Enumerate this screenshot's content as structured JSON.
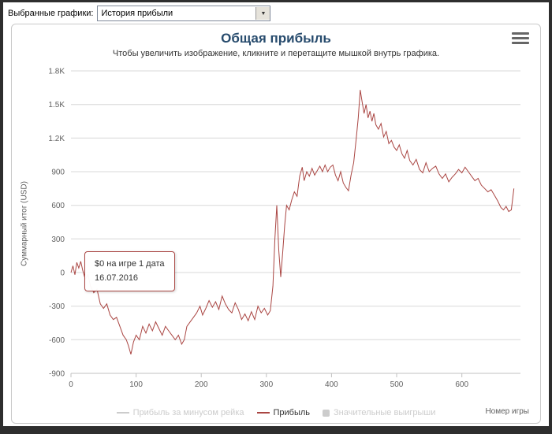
{
  "toolbar": {
    "label": "Выбранные графики:",
    "dropdown_value": "История прибыли"
  },
  "chart": {
    "title": "Общая прибыль",
    "subtitle": "Чтобы увеличить изображение, кликните и перетащите мышкой внутрь графика.",
    "tooltip": {
      "line1": "$0 на игре 1 дата",
      "line2": "16.07.2016"
    }
  },
  "chart_data": {
    "type": "line",
    "title": "Общая прибыль",
    "subtitle": "Чтобы увеличить изображение, кликните и перетащите мышкой внутрь графика.",
    "xlabel": "Номер игры",
    "ylabel": "Суммарный итог (USD)",
    "xlim": [
      0,
      690
    ],
    "ylim": [
      -900,
      1800
    ],
    "xticks": [
      0,
      100,
      200,
      300,
      400,
      500,
      600
    ],
    "yticks": [
      1800,
      1500,
      1200,
      900,
      600,
      300,
      0,
      -300,
      -600,
      -900
    ],
    "ytick_labels": [
      "1.8K",
      "1.5K",
      "1.2K",
      "900",
      "600",
      "300",
      "0",
      "-300",
      "-600",
      "-900"
    ],
    "grid": true,
    "legend_position": "bottom",
    "title_color": "#274b6d",
    "grid_color": "#d8d8d8",
    "axis_text_color": "#606060",
    "legend": [
      {
        "label": "Прибыль за минусом рейка",
        "color": "#cccccc",
        "marker": "line",
        "disabled": true
      },
      {
        "label": "Прибыль",
        "color": "#AA4643",
        "marker": "line",
        "disabled": false
      },
      {
        "label": "Значительные выигрыши",
        "color": "#cccccc",
        "marker": "square",
        "disabled": true
      }
    ],
    "series": [
      {
        "name": "Прибыль",
        "color": "#AA4643",
        "points": [
          [
            0,
            0
          ],
          [
            3,
            60
          ],
          [
            6,
            -20
          ],
          [
            9,
            90
          ],
          [
            12,
            40
          ],
          [
            15,
            100
          ],
          [
            18,
            20
          ],
          [
            22,
            -60
          ],
          [
            26,
            -20
          ],
          [
            30,
            -120
          ],
          [
            35,
            -180
          ],
          [
            40,
            -150
          ],
          [
            45,
            -280
          ],
          [
            50,
            -320
          ],
          [
            55,
            -280
          ],
          [
            60,
            -380
          ],
          [
            65,
            -420
          ],
          [
            70,
            -400
          ],
          [
            75,
            -480
          ],
          [
            80,
            -560
          ],
          [
            85,
            -600
          ],
          [
            88,
            -650
          ],
          [
            92,
            -730
          ],
          [
            96,
            -620
          ],
          [
            100,
            -560
          ],
          [
            105,
            -600
          ],
          [
            110,
            -480
          ],
          [
            115,
            -540
          ],
          [
            120,
            -460
          ],
          [
            125,
            -520
          ],
          [
            130,
            -440
          ],
          [
            135,
            -500
          ],
          [
            140,
            -560
          ],
          [
            145,
            -480
          ],
          [
            150,
            -520
          ],
          [
            155,
            -560
          ],
          [
            160,
            -600
          ],
          [
            165,
            -560
          ],
          [
            170,
            -640
          ],
          [
            174,
            -600
          ],
          [
            178,
            -480
          ],
          [
            183,
            -440
          ],
          [
            188,
            -400
          ],
          [
            193,
            -360
          ],
          [
            198,
            -300
          ],
          [
            202,
            -380
          ],
          [
            207,
            -320
          ],
          [
            212,
            -250
          ],
          [
            217,
            -310
          ],
          [
            222,
            -260
          ],
          [
            227,
            -330
          ],
          [
            232,
            -210
          ],
          [
            237,
            -280
          ],
          [
            242,
            -330
          ],
          [
            247,
            -360
          ],
          [
            252,
            -270
          ],
          [
            257,
            -330
          ],
          [
            262,
            -420
          ],
          [
            267,
            -370
          ],
          [
            272,
            -430
          ],
          [
            277,
            -350
          ],
          [
            282,
            -420
          ],
          [
            287,
            -300
          ],
          [
            292,
            -360
          ],
          [
            297,
            -320
          ],
          [
            302,
            -380
          ],
          [
            306,
            -340
          ],
          [
            310,
            -120
          ],
          [
            313,
            300
          ],
          [
            316,
            600
          ],
          [
            319,
            200
          ],
          [
            322,
            -40
          ],
          [
            325,
            180
          ],
          [
            328,
            420
          ],
          [
            331,
            600
          ],
          [
            335,
            560
          ],
          [
            339,
            650
          ],
          [
            343,
            720
          ],
          [
            347,
            680
          ],
          [
            351,
            860
          ],
          [
            355,
            940
          ],
          [
            358,
            820
          ],
          [
            362,
            900
          ],
          [
            366,
            860
          ],
          [
            370,
            930
          ],
          [
            374,
            870
          ],
          [
            378,
            910
          ],
          [
            382,
            950
          ],
          [
            386,
            900
          ],
          [
            390,
            960
          ],
          [
            394,
            900
          ],
          [
            398,
            940
          ],
          [
            402,
            960
          ],
          [
            406,
            870
          ],
          [
            410,
            820
          ],
          [
            414,
            900
          ],
          [
            418,
            800
          ],
          [
            422,
            760
          ],
          [
            426,
            730
          ],
          [
            430,
            870
          ],
          [
            434,
            980
          ],
          [
            438,
            1200
          ],
          [
            441,
            1380
          ],
          [
            444,
            1630
          ],
          [
            447,
            1520
          ],
          [
            450,
            1420
          ],
          [
            453,
            1500
          ],
          [
            456,
            1380
          ],
          [
            459,
            1440
          ],
          [
            462,
            1350
          ],
          [
            465,
            1420
          ],
          [
            468,
            1320
          ],
          [
            472,
            1280
          ],
          [
            476,
            1330
          ],
          [
            480,
            1210
          ],
          [
            484,
            1260
          ],
          [
            488,
            1150
          ],
          [
            492,
            1180
          ],
          [
            496,
            1120
          ],
          [
            500,
            1090
          ],
          [
            504,
            1140
          ],
          [
            508,
            1060
          ],
          [
            512,
            1020
          ],
          [
            516,
            1090
          ],
          [
            520,
            1000
          ],
          [
            525,
            960
          ],
          [
            530,
            1010
          ],
          [
            535,
            920
          ],
          [
            540,
            890
          ],
          [
            545,
            980
          ],
          [
            550,
            900
          ],
          [
            555,
            930
          ],
          [
            560,
            950
          ],
          [
            565,
            880
          ],
          [
            570,
            840
          ],
          [
            575,
            880
          ],
          [
            580,
            810
          ],
          [
            585,
            850
          ],
          [
            590,
            880
          ],
          [
            595,
            920
          ],
          [
            600,
            890
          ],
          [
            605,
            940
          ],
          [
            610,
            900
          ],
          [
            615,
            860
          ],
          [
            620,
            820
          ],
          [
            625,
            840
          ],
          [
            630,
            780
          ],
          [
            635,
            750
          ],
          [
            640,
            720
          ],
          [
            645,
            740
          ],
          [
            650,
            690
          ],
          [
            655,
            640
          ],
          [
            660,
            580
          ],
          [
            664,
            560
          ],
          [
            668,
            590
          ],
          [
            672,
            545
          ],
          [
            676,
            560
          ],
          [
            680,
            750
          ]
        ]
      }
    ]
  }
}
